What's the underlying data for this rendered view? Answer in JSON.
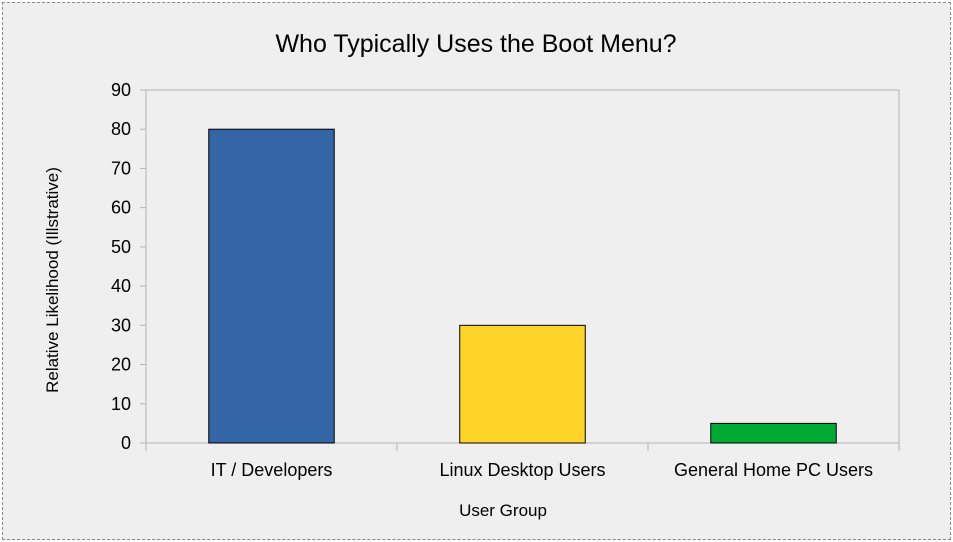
{
  "chart_data": {
    "type": "bar",
    "title": "Who Typically Uses the Boot Menu?",
    "xlabel": "User Group",
    "ylabel": "Relative Likelihood (Illstrative)",
    "categories": [
      "IT / Developers",
      "Linux Desktop Users",
      "General Home PC Users"
    ],
    "values": [
      80,
      30,
      5
    ],
    "colors": [
      "#3465a4",
      "#ffd42a",
      "#00a933"
    ],
    "ylim": [
      0,
      90
    ],
    "yticks": [
      "0",
      "10",
      "20",
      "30",
      "40",
      "50",
      "60",
      "70",
      "80",
      "90"
    ],
    "grid": false,
    "legend": "none"
  }
}
